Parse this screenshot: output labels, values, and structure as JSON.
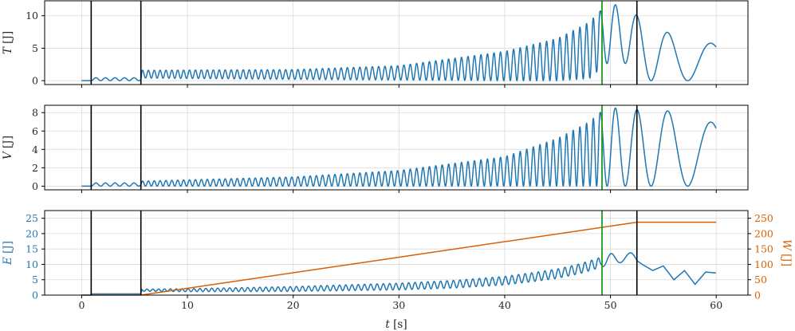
{
  "chart_data": [
    {
      "type": "line",
      "name": "kinetic-energy",
      "ylabel_sym": "T",
      "ylabel_unit": "[J]",
      "xlim": [
        -3.5,
        63
      ],
      "ylim": [
        -0.6,
        12.3
      ],
      "yticks": [
        0,
        5,
        10
      ],
      "xticks": [
        0,
        10,
        20,
        30,
        40,
        50,
        60
      ],
      "grid": true,
      "series": [
        {
          "color": "#1f77b4",
          "envelope_t": [
            0,
            0.8,
            1.0,
            5.6,
            5.7,
            20,
            30,
            40,
            45,
            48,
            49.3,
            50,
            52,
            52.6,
            53,
            56,
            60
          ],
          "envelope_max": [
            0,
            0,
            0.45,
            0.45,
            1.6,
            1.7,
            2.3,
            4.5,
            6.5,
            9.0,
            11.2,
            11.8,
            11.3,
            9.8,
            9.2,
            7.0,
            5.6
          ],
          "envelope_min": [
            0,
            0,
            0,
            0,
            0.4,
            0.2,
            0.1,
            0,
            0,
            0.3,
            2.2,
            3.0,
            2.5,
            1.0,
            0,
            0,
            0
          ]
        }
      ],
      "vlines": [
        {
          "x": 0.9,
          "color": "#000000"
        },
        {
          "x": 5.6,
          "color": "#000000"
        },
        {
          "x": 49.2,
          "color": "#1a9a1a"
        },
        {
          "x": 52.5,
          "color": "#000000"
        }
      ]
    },
    {
      "type": "line",
      "name": "potential-energy",
      "ylabel_sym": "V",
      "ylabel_unit": "[J]",
      "xlim": [
        -3.5,
        63
      ],
      "ylim": [
        -0.4,
        8.8
      ],
      "yticks": [
        0,
        2,
        4,
        6,
        8
      ],
      "xticks": [
        0,
        10,
        20,
        30,
        40,
        50,
        60
      ],
      "grid": true,
      "series": [
        {
          "color": "#1f77b4",
          "envelope_t": [
            0,
            0.8,
            1.0,
            5.6,
            5.7,
            20,
            30,
            40,
            45,
            48,
            49.3,
            50,
            52,
            52.6,
            55,
            58,
            60
          ],
          "envelope_max": [
            0,
            0,
            0.35,
            0.35,
            0.55,
            1.0,
            1.7,
            3.2,
            5.2,
            7.0,
            8.3,
            8.5,
            8.5,
            8.3,
            8.3,
            7.5,
            6.8
          ],
          "envelope_min": [
            0,
            0,
            0,
            0,
            0,
            0,
            0,
            0,
            0,
            0,
            0,
            0,
            0,
            0,
            0,
            0,
            0
          ]
        }
      ],
      "vlines": [
        {
          "x": 0.9,
          "color": "#000000"
        },
        {
          "x": 5.6,
          "color": "#000000"
        },
        {
          "x": 49.2,
          "color": "#1a9a1a"
        },
        {
          "x": 52.5,
          "color": "#000000"
        }
      ]
    },
    {
      "type": "line",
      "name": "energy-and-work",
      "ylabel_sym": "E",
      "ylabel_unit": "[J]",
      "y2label_sym": "W",
      "y2label_unit": "[J]",
      "xlabel_sym": "t",
      "xlabel_unit": "[s]",
      "xlim": [
        -3.5,
        63
      ],
      "ylim": [
        0,
        27.5
      ],
      "yticks": [
        0,
        5,
        10,
        15,
        20,
        25
      ],
      "y2lim": [
        0,
        275
      ],
      "y2ticks": [
        0,
        50,
        100,
        150,
        200,
        250
      ],
      "xticks": [
        0,
        10,
        20,
        30,
        40,
        50,
        60
      ],
      "grid": true,
      "series": [
        {
          "axis": "left",
          "color": "#1f77b4",
          "x": [
            0,
            0.8,
            1.0,
            5.6,
            5.7,
            10,
            15,
            20,
            25,
            30,
            35,
            40,
            43,
            45,
            47,
            48,
            49.2,
            50,
            51,
            52,
            52.5,
            53,
            54,
            55,
            56,
            57,
            58,
            59,
            60
          ],
          "y": [
            0,
            0,
            0.4,
            0.4,
            1.6,
            1.6,
            1.8,
            2.0,
            2.4,
            2.8,
            3.5,
            4.7,
            6.0,
            7.0,
            8.5,
            9.5,
            10.8,
            11.8,
            12.3,
            12.0,
            11.2,
            10.0,
            8.0,
            9.5,
            5.0,
            8.0,
            3.5,
            7.5,
            7.2
          ]
        },
        {
          "axis": "right",
          "color": "#d95f02",
          "x": [
            0,
            5.6,
            52.5,
            60
          ],
          "y": [
            0,
            0,
            237,
            237
          ]
        }
      ],
      "vlines": [
        {
          "x": 0.9,
          "color": "#000000"
        },
        {
          "x": 5.6,
          "color": "#000000"
        },
        {
          "x": 49.2,
          "color": "#1a9a1a"
        },
        {
          "x": 52.5,
          "color": "#000000"
        }
      ]
    }
  ]
}
